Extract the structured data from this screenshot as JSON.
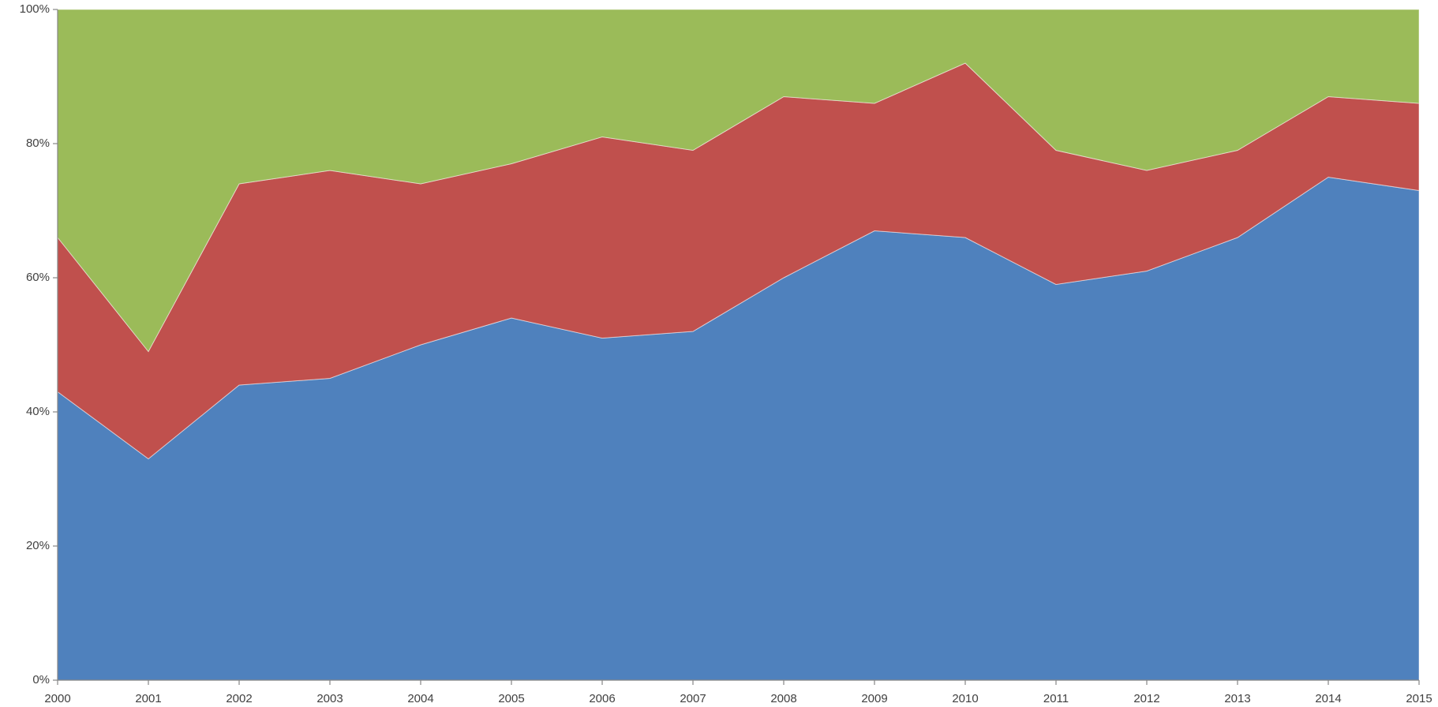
{
  "chart_data": {
    "type": "area",
    "stacked": true,
    "categories": [
      "2000",
      "2001",
      "2002",
      "2003",
      "2004",
      "2005",
      "2006",
      "2007",
      "2008",
      "2009",
      "2010",
      "2011",
      "2012",
      "2013",
      "2014",
      "2015"
    ],
    "series": [
      {
        "color": "#4f81bd",
        "values": [
          43,
          33,
          44,
          45,
          50,
          54,
          51,
          52,
          60,
          67,
          66,
          59,
          61,
          66,
          75,
          73
        ]
      },
      {
        "color": "#c0504d",
        "values": [
          23,
          16,
          30,
          31,
          24,
          23,
          30,
          27,
          27,
          19,
          26,
          20,
          15,
          13,
          12,
          13
        ]
      },
      {
        "color": "#9bbb59",
        "values": [
          34,
          51,
          26,
          24,
          26,
          23,
          19,
          21,
          13,
          14,
          8,
          21,
          24,
          21,
          13,
          14
        ]
      }
    ],
    "ylim": [
      0,
      100
    ],
    "yticks": [
      {
        "value": 0,
        "label": "0%"
      },
      {
        "value": 20,
        "label": "20%"
      },
      {
        "value": 40,
        "label": "40%"
      },
      {
        "value": 60,
        "label": "60%"
      },
      {
        "value": 80,
        "label": "80%"
      },
      {
        "value": 100,
        "label": "100%"
      }
    ],
    "grid": false
  }
}
